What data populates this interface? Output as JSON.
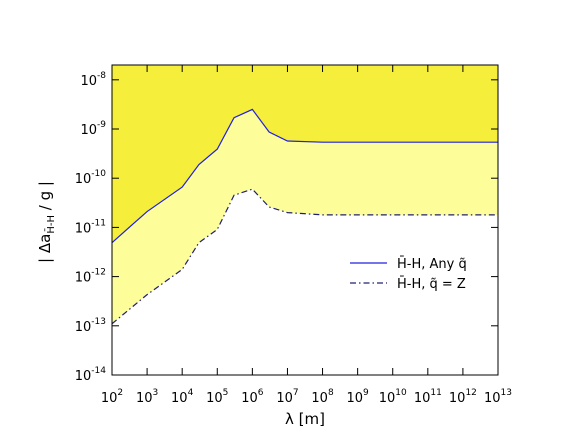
{
  "chart_data": {
    "type": "line",
    "log_x": true,
    "log_y": true,
    "xlabel": "λ [m]",
    "ylabel": {
      "main": "| Δa",
      "sub": "H̄-H",
      "rest": " / g |"
    },
    "x": [
      100,
      1000,
      10000,
      30000,
      100000,
      300000,
      1000000,
      3000000,
      10000000,
      100000000,
      10000000000000
    ],
    "series": [
      {
        "name": "H̄-H, Any q̃",
        "color": "#2020e0",
        "dash": "solid",
        "fill": "#f5ef3c",
        "values": [
          4.9e-12,
          2.1e-11,
          6.6e-11,
          1.9e-10,
          3.9e-10,
          1.7e-09,
          2.5e-09,
          8.7e-10,
          5.7e-10,
          5.4e-10,
          5.4e-10
        ]
      },
      {
        "name": "H̄-H, q̃ = Z",
        "color": "#202070",
        "dash": "dashdot",
        "fill": "#fdfd9a",
        "values": [
          1.1e-13,
          4.3e-13,
          1.4e-12,
          4.9e-12,
          9.1e-12,
          4.5e-11,
          6e-11,
          2.6e-11,
          2e-11,
          1.8e-11,
          1.8e-11
        ]
      }
    ],
    "xlim": [
      100,
      10000000000000
    ],
    "ylim": [
      1e-14,
      2e-08
    ],
    "xticks": [
      {
        "value": 100,
        "label": "10",
        "sup": "2"
      },
      {
        "value": 1000,
        "label": "10",
        "sup": "3"
      },
      {
        "value": 10000,
        "label": "10",
        "sup": "4"
      },
      {
        "value": 100000,
        "label": "10",
        "sup": "5"
      },
      {
        "value": 1000000,
        "label": "10",
        "sup": "6"
      },
      {
        "value": 10000000,
        "label": "10",
        "sup": "7"
      },
      {
        "value": 100000000,
        "label": "10",
        "sup": "8"
      },
      {
        "value": 1000000000,
        "label": "10",
        "sup": "9"
      },
      {
        "value": 10000000000,
        "label": "10",
        "sup": "10"
      },
      {
        "value": 100000000000,
        "label": "10",
        "sup": "11"
      },
      {
        "value": 1000000000000,
        "label": "10",
        "sup": "12"
      },
      {
        "value": 10000000000000,
        "label": "10",
        "sup": "13"
      }
    ],
    "yticks": [
      {
        "value": 1e-14,
        "label": "10",
        "sup": "-14"
      },
      {
        "value": 1e-13,
        "label": "10",
        "sup": "-13"
      },
      {
        "value": 1e-12,
        "label": "10",
        "sup": "-12"
      },
      {
        "value": 1e-11,
        "label": "10",
        "sup": "-11"
      },
      {
        "value": 1e-10,
        "label": "10",
        "sup": "-10"
      },
      {
        "value": 1e-09,
        "label": "10",
        "sup": "-9"
      },
      {
        "value": 1e-08,
        "label": "10",
        "sup": "-8"
      }
    ],
    "grid": false,
    "legend": "right"
  }
}
